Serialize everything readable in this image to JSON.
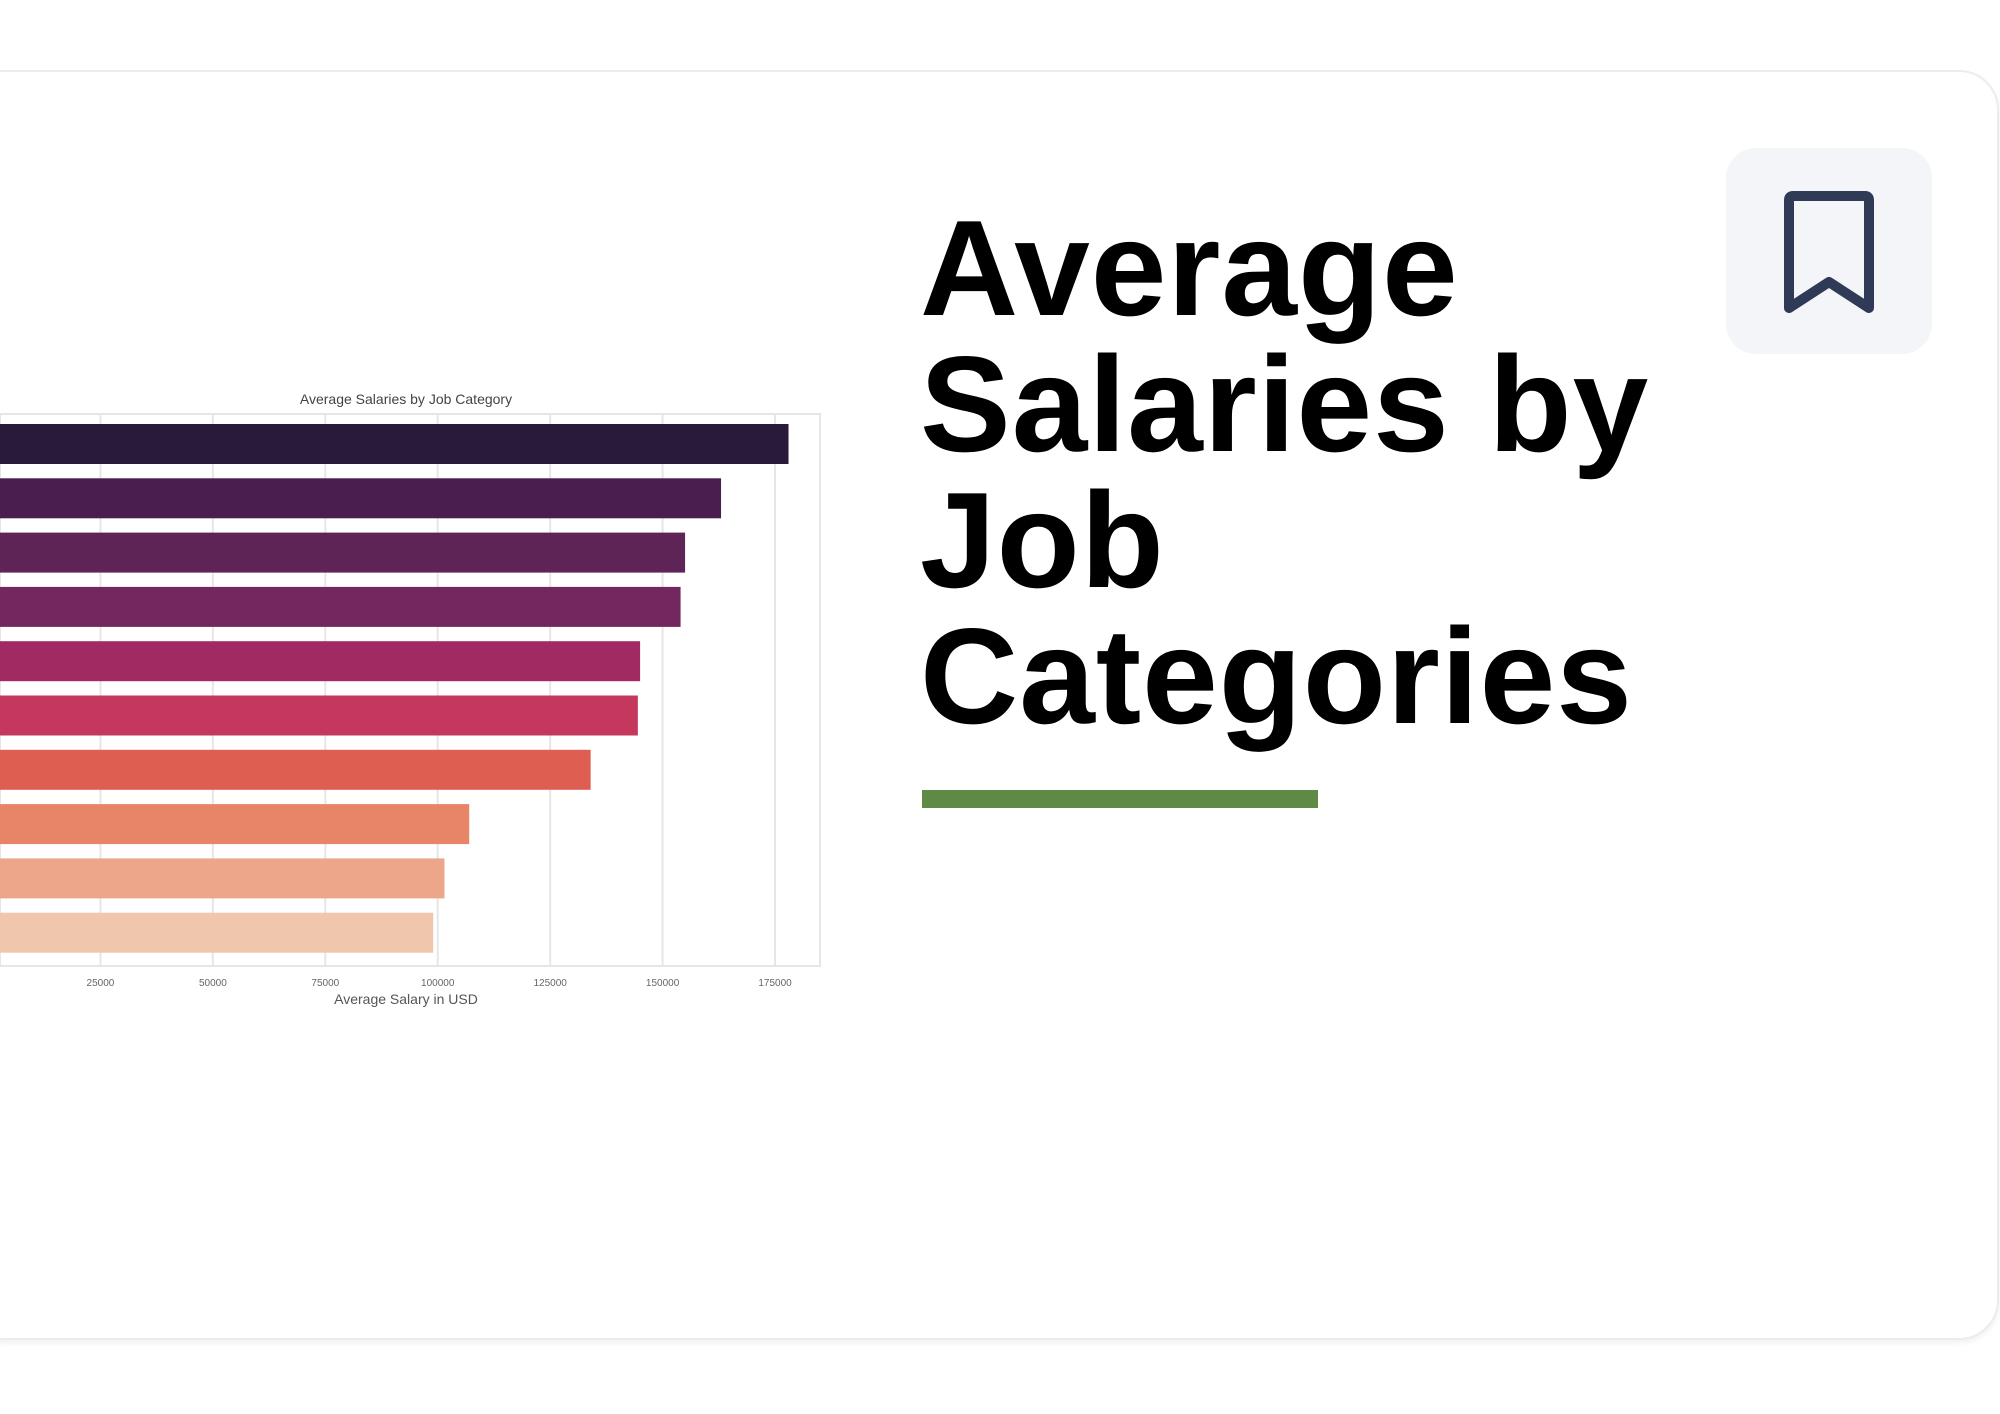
{
  "card": {
    "headline_lines": [
      "Average",
      "Salaries by",
      "Job",
      "Categories"
    ],
    "accent_color": "#5f8a46",
    "bookmark_icon": "bookmark-icon"
  },
  "chart_data": {
    "type": "bar",
    "orientation": "horizontal",
    "title": "Average Salaries by Job Category",
    "xlabel": "Average Salary in USD",
    "ylabel": "",
    "xticks": [
      "25000",
      "50000",
      "75000",
      "100000",
      "125000",
      "150000",
      "175000"
    ],
    "xlim": [
      0,
      185000
    ],
    "grid": true,
    "values": [
      178000,
      163000,
      155000,
      154000,
      145000,
      144500,
      134000,
      107000,
      101500,
      99000
    ],
    "colors": [
      "#2a1a3a",
      "#4a1f4f",
      "#5e2455",
      "#74265e",
      "#a12a62",
      "#c4385e",
      "#df5e52",
      "#e88468",
      "#eda689",
      "#f0c6ad"
    ]
  }
}
